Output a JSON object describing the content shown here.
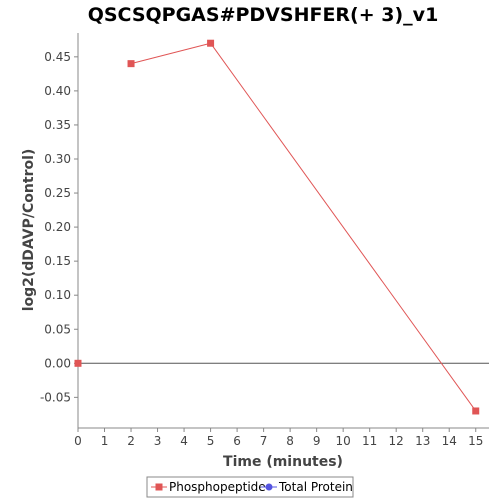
{
  "chart_data": {
    "type": "line",
    "title": "QSCSQPGAS#PDVSHFER(+ 3)_v1",
    "xlabel": "Time (minutes)",
    "ylabel": "log2(dDAVP/Control)",
    "xlim": [
      0,
      15.5
    ],
    "ylim": [
      -0.095,
      0.485
    ],
    "x_ticks": [
      0,
      1,
      2,
      3,
      4,
      5,
      6,
      7,
      8,
      9,
      10,
      11,
      12,
      13,
      14,
      15
    ],
    "y_ticks": [
      -0.05,
      0.0,
      0.05,
      0.1,
      0.15,
      0.2,
      0.25,
      0.3,
      0.35,
      0.4,
      0.45
    ],
    "y_tick_labels": [
      "-0.05",
      "0.00",
      "0.05",
      "0.10",
      "0.15",
      "0.20",
      "0.25",
      "0.30",
      "0.35",
      "0.40",
      "0.45"
    ],
    "zero_line": true,
    "grid": false,
    "legend_position": "bottom-center",
    "series": [
      {
        "name": "Phosphopeptide",
        "color": "#e05555",
        "marker": "square",
        "x": [
          0,
          2,
          5,
          15
        ],
        "y": [
          0.0,
          0.44,
          0.47,
          -0.07
        ],
        "connected": [
          false,
          true,
          true
        ]
      },
      {
        "name": "Total Protein",
        "color": "#5555e0",
        "marker": "circle",
        "x": [],
        "y": []
      }
    ]
  }
}
